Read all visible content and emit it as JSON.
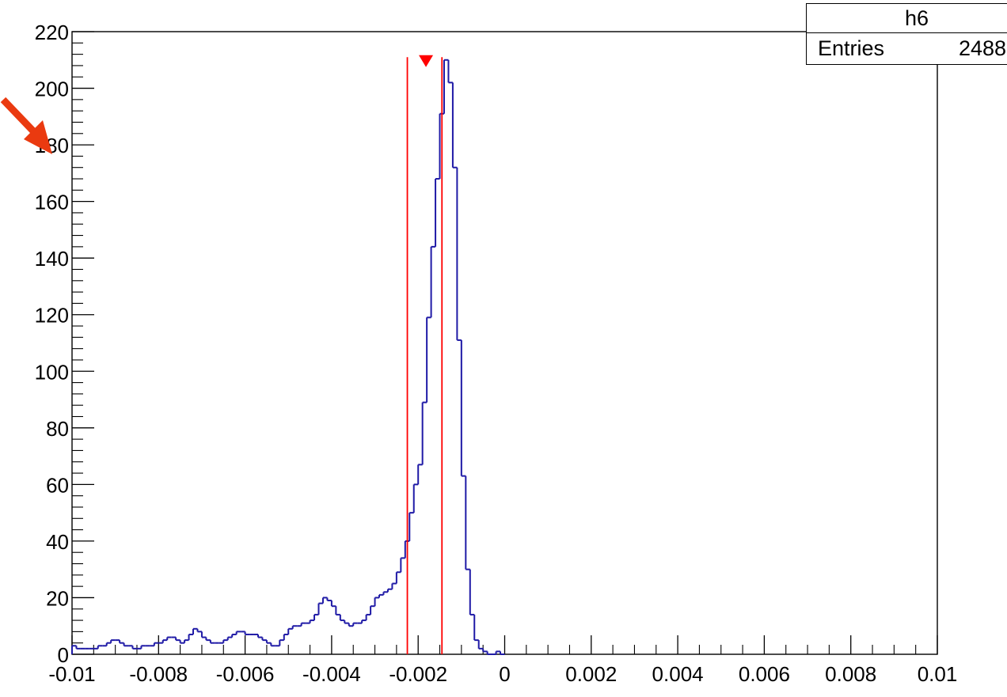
{
  "chart_data": {
    "type": "histogram",
    "title": "",
    "xlabel": "",
    "ylabel": "",
    "xlim": [
      -0.01,
      0.01
    ],
    "ylim": [
      0,
      220
    ],
    "x_ticks": [
      -0.01,
      -0.008,
      -0.006,
      -0.004,
      -0.002,
      0,
      0.002,
      0.004,
      0.006,
      0.008,
      0.01
    ],
    "x_tick_labels": [
      "-0.01",
      "-0.008",
      "-0.006",
      "-0.004",
      "-0.002",
      "0",
      "0.002",
      "0.004",
      "0.006",
      "0.008",
      "0.01"
    ],
    "y_ticks": [
      0,
      20,
      40,
      60,
      80,
      100,
      120,
      140,
      160,
      180,
      200,
      220
    ],
    "y_tick_labels": [
      "0",
      "20",
      "40",
      "60",
      "80",
      "100",
      "120",
      "140",
      "160",
      "180",
      "200",
      "220"
    ],
    "bin_width": 0.0001,
    "bin_start": -0.01,
    "values": [
      3,
      2,
      2,
      2,
      2,
      2,
      3,
      3,
      4,
      5,
      5,
      4,
      3,
      3,
      2,
      2,
      3,
      3,
      3,
      4,
      4,
      5,
      6,
      6,
      5,
      4,
      5,
      7,
      9,
      8,
      6,
      5,
      4,
      4,
      4,
      5,
      6,
      7,
      8,
      8,
      7,
      7,
      7,
      6,
      5,
      4,
      3,
      3,
      5,
      7,
      9,
      10,
      10,
      11,
      11,
      12,
      14,
      18,
      20,
      19,
      17,
      14,
      12,
      11,
      10,
      11,
      11,
      12,
      14,
      17,
      20,
      21,
      22,
      23,
      25,
      29,
      34,
      40,
      50,
      60,
      67,
      89,
      119,
      144,
      168,
      191,
      210,
      202,
      172,
      111,
      63,
      30,
      14,
      5,
      2,
      1,
      0,
      0,
      1,
      0
    ],
    "marker": {
      "x": -0.00182,
      "y": 210
    },
    "vlines": [
      -0.00225,
      -0.00145
    ],
    "colors": {
      "line": "#1f1aa6",
      "red": "#ff0000",
      "arrow": "#ea3a10"
    }
  },
  "stats": {
    "name": "h6",
    "entries_label": "Entries",
    "entries_value": "2488"
  }
}
